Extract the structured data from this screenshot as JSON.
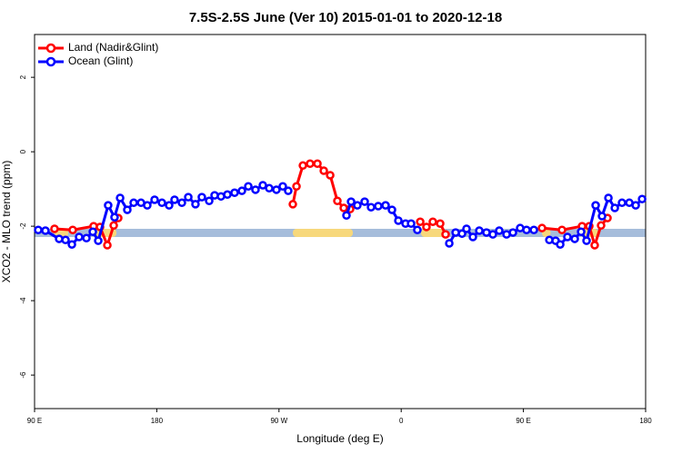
{
  "chart_data": {
    "type": "line",
    "title": "7.5S-2.5S June (Ver 10)   2015-01-01 to 2020-12-18",
    "x_label": "Longitude (deg E)",
    "y_label": "XCO2 - MLO trend (ppm)",
    "xlim": [
      90,
      540
    ],
    "ylim": [
      -6.9,
      3.15
    ],
    "xticks": [
      {
        "value": 90,
        "label": "90 E"
      },
      180,
      {
        "value": 270,
        "label": "90 W"
      },
      {
        "value": 360,
        "label": "0"
      },
      {
        "value": 450,
        "label": "90 E"
      },
      {
        "value": 540,
        "label": "180"
      }
    ],
    "yticks": [
      2,
      0,
      -2,
      -4,
      -6
    ],
    "legend": "top-left",
    "band": {
      "ylim": [
        -2.29,
        -2.07
      ],
      "color": "#a6bddb"
    },
    "land_band": {
      "color": "#f7d87c",
      "ranges": [
        [
          104.7,
          114.8
        ],
        [
          134.9,
          150.3
        ],
        [
          280.2,
          324.4
        ],
        [
          374.6,
          392.7
        ],
        [
          463.7,
          470
        ],
        [
          493.2,
          505
        ]
      ]
    },
    "series": [
      {
        "name": "Land (Nadir&Glint)",
        "color": "#ff0000",
        "x": [
          104.7,
          118.1,
          133.5,
          138.2,
          143.6,
          148.3,
          151.6,
          null,
          280.2,
          282.9,
          287.6,
          292.9,
          298.3,
          303.0,
          307.7,
          313.0,
          317.7,
          322.4,
          null,
          374.0,
          378.6,
          383.3,
          388.7,
          392.7,
          null,
          463.7,
          478.4,
          493.2,
          498.5,
          502.5,
          507.2,
          511.9
        ],
        "values": [
          -2.07,
          -2.1,
          -2.0,
          -2.02,
          -2.51,
          -1.98,
          -1.78,
          null,
          -1.41,
          -0.93,
          -0.37,
          -0.32,
          -0.32,
          -0.51,
          -0.63,
          -1.32,
          -1.51,
          -1.54,
          null,
          -1.88,
          -2.02,
          -1.88,
          -1.93,
          -2.22,
          null,
          -2.05,
          -2.1,
          -2.0,
          -2.0,
          -2.51,
          -1.98,
          -1.78
        ]
      },
      {
        "name": "Ocean (Glint)",
        "color": "#0000ff",
        "x": [
          92.7,
          98.0,
          108.1,
          112.8,
          117.5,
          122.8,
          128.2,
          132.9,
          136.9,
          144.2,
          148.9,
          153.0,
          158.3,
          163.0,
          168.4,
          173.0,
          178.4,
          183.8,
          189.1,
          193.1,
          198.5,
          203.2,
          208.5,
          213.2,
          218.6,
          222.6,
          227.3,
          232.0,
          237.3,
          242.7,
          247.4,
          252.7,
          258.1,
          262.8,
          268.1,
          272.8,
          276.8,
          null,
          319.7,
          323.1,
          327.7,
          333.1,
          337.8,
          343.1,
          348.5,
          353.2,
          357.9,
          363.2,
          367.3,
          371.9,
          null,
          395.4,
          400.1,
          404.8,
          408.1,
          412.8,
          417.5,
          422.8,
          427.5,
          432.2,
          437.6,
          442.3,
          447.6,
          452.3,
          457.7,
          null,
          469.1,
          473.7,
          477.1,
          482.4,
          487.8,
          492.5,
          496.5,
          503.2,
          507.9,
          512.6,
          517.3,
          522.6,
          528.0,
          532.7,
          537.4
        ],
        "values": [
          -2.1,
          -2.12,
          -2.34,
          -2.37,
          -2.49,
          -2.29,
          -2.32,
          -2.15,
          -2.39,
          -1.44,
          -1.76,
          -1.24,
          -1.56,
          -1.37,
          -1.37,
          -1.44,
          -1.29,
          -1.37,
          -1.44,
          -1.29,
          -1.37,
          -1.22,
          -1.41,
          -1.22,
          -1.32,
          -1.17,
          -1.2,
          -1.15,
          -1.1,
          -1.05,
          -0.93,
          -1.02,
          -0.9,
          -0.98,
          -1.02,
          -0.93,
          -1.05,
          null,
          -1.71,
          -1.34,
          -1.44,
          -1.34,
          -1.49,
          -1.46,
          -1.44,
          -1.56,
          -1.85,
          -1.93,
          -1.93,
          -2.1,
          null,
          -2.46,
          -2.17,
          -2.2,
          -2.07,
          -2.29,
          -2.12,
          -2.17,
          -2.22,
          -2.12,
          -2.22,
          -2.17,
          -2.05,
          -2.1,
          -2.1,
          null,
          -2.37,
          -2.39,
          -2.49,
          -2.29,
          -2.34,
          -2.15,
          -2.39,
          -1.44,
          -1.73,
          -1.24,
          -1.51,
          -1.37,
          -1.37,
          -1.44,
          -1.27
        ]
      }
    ]
  }
}
